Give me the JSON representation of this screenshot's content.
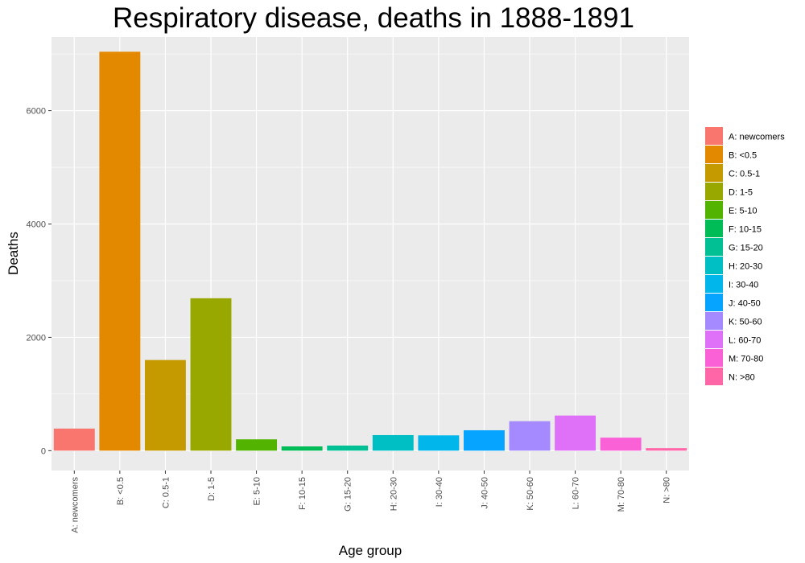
{
  "chart_data": {
    "type": "bar",
    "title": "Respiratory disease, deaths in 1888-1891",
    "xlabel": "Age group",
    "ylabel": "Deaths",
    "ylim": [
      -350,
      7300
    ],
    "yticks": [
      0,
      2000,
      4000,
      6000
    ],
    "grid": true,
    "legend_position": "right",
    "categories": [
      "A: newcomers",
      "B: <0.5",
      "C: 0.5-1",
      "D: 1-5",
      "E: 5-10",
      "F: 10-15",
      "G: 15-20",
      "H: 20-30",
      "I: 30-40",
      "J: 40-50",
      "K: 50-60",
      "L: 60-70",
      "M: 70-80",
      "N: >80"
    ],
    "tick_labels": [
      "A: newcomers",
      "B: <0.5",
      "C: 0.5-1",
      "D: 1-5",
      "E: 5-10",
      "F: 10-15",
      "G: 15-20",
      "H: 20-30",
      "I: 30-40",
      "J: 40-50",
      "K: 50-60",
      "L: 60-70",
      "M: 70-80",
      "N: >80"
    ],
    "values": [
      390,
      7040,
      1600,
      2690,
      200,
      75,
      90,
      275,
      270,
      360,
      520,
      620,
      230,
      45
    ],
    "colors": [
      "#F8766D",
      "#E38900",
      "#C49A00",
      "#99A800",
      "#53B400",
      "#00BC56",
      "#00C094",
      "#00BFC4",
      "#00B6EB",
      "#06A4FF",
      "#A58AFF",
      "#DF70F8",
      "#FB61D7",
      "#FF66A8"
    ],
    "legend": {
      "entries": [
        "A: newcomers",
        "B: <0.5",
        "C: 0.5-1",
        "D: 1-5",
        "E: 5-10",
        "F: 10-15",
        "G: 15-20",
        "H: 20-30",
        "I: 30-40",
        "J: 40-50",
        "K: 50-60",
        "L: 60-70",
        "M: 70-80",
        "N: >80"
      ]
    },
    "panel_background": "#EBEBEB",
    "grid_color": "#FFFFFF"
  }
}
